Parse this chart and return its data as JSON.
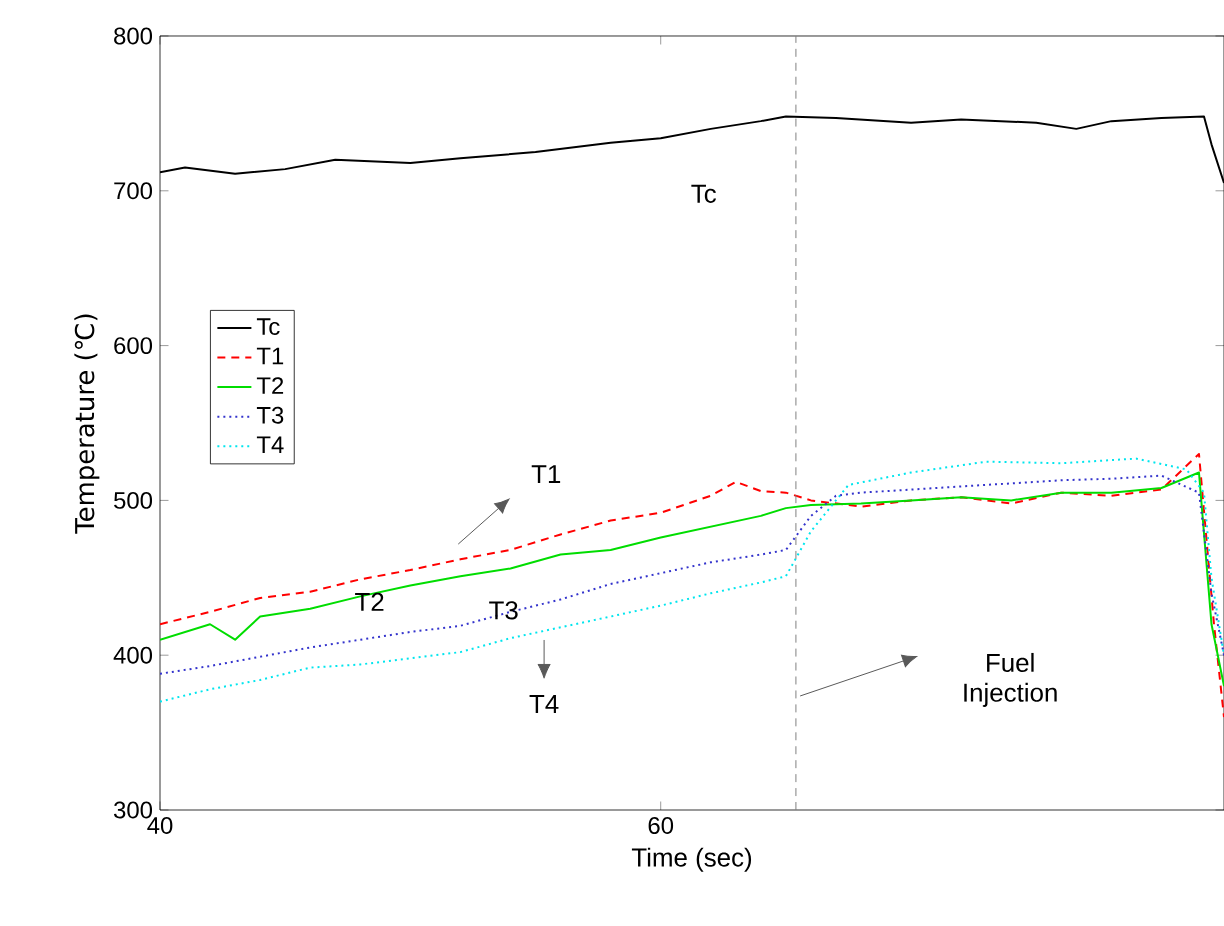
{
  "chart_data": {
    "type": "line",
    "xlabel": "Time (sec)",
    "ylabel": "Temperature (℃)",
    "xlim": [
      40,
      82.5
    ],
    "ylim": [
      300,
      800
    ],
    "xticks": [
      40,
      60
    ],
    "yticks": [
      300,
      400,
      500,
      600,
      700,
      800
    ],
    "grid": false,
    "legend": "left",
    "marker": "none",
    "series": [
      {
        "name": "Tc",
        "color": "#000000",
        "line_style": "solid",
        "x": [
          40,
          41,
          43,
          45,
          47,
          50,
          52,
          55,
          58,
          60,
          62,
          64,
          65,
          67,
          70,
          72,
          75,
          76.6,
          78,
          80,
          81.7,
          82,
          82.5
        ],
        "values": [
          712,
          715,
          711,
          714,
          720,
          718,
          721,
          725,
          731,
          734,
          740,
          745,
          748,
          747,
          744,
          746,
          744,
          740,
          745,
          747,
          748,
          730,
          705
        ]
      },
      {
        "name": "T1",
        "color": "#ff0000",
        "line_style": "dashed",
        "x": [
          40,
          42,
          44,
          46,
          48,
          50,
          52,
          54,
          56,
          58,
          60,
          62,
          63,
          64,
          65,
          66,
          68,
          70,
          72,
          74,
          76,
          78,
          80,
          81.5,
          82.1,
          82.5
        ],
        "values": [
          420,
          428,
          437,
          441,
          449,
          455,
          462,
          468,
          478,
          487,
          492,
          503,
          512,
          506,
          505,
          500,
          496,
          500,
          502,
          498,
          505,
          503,
          507,
          530,
          420,
          360
        ]
      },
      {
        "name": "T2",
        "color": "#00dd00",
        "line_style": "solid",
        "x": [
          40,
          42,
          43,
          44,
          46,
          48,
          50,
          52,
          54,
          56,
          58,
          60,
          62,
          64,
          65,
          66,
          68,
          70,
          72,
          74,
          76,
          78,
          80,
          81.5,
          82,
          82.5
        ],
        "values": [
          410,
          420,
          410,
          425,
          430,
          438,
          445,
          451,
          456,
          465,
          468,
          476,
          483,
          490,
          495,
          497,
          498,
          500,
          502,
          500,
          505,
          505,
          508,
          518,
          420,
          380
        ]
      },
      {
        "name": "T3",
        "color": "#3333cc",
        "line_style": "dotted",
        "x": [
          40,
          42,
          44,
          46,
          48,
          50,
          52,
          54,
          56,
          58,
          60,
          62,
          64,
          65,
          66,
          67,
          68,
          70,
          72,
          74,
          76,
          78,
          80,
          81.5,
          82,
          82.5
        ],
        "values": [
          388,
          393,
          399,
          405,
          410,
          415,
          419,
          428,
          436,
          446,
          453,
          460,
          465,
          468,
          490,
          503,
          505,
          507,
          509,
          511,
          513,
          514,
          516,
          505,
          440,
          400
        ]
      },
      {
        "name": "T4",
        "color": "#00e5ee",
        "line_style": "dotted",
        "x": [
          40,
          42,
          44,
          46,
          48,
          50,
          52,
          54,
          56,
          58,
          60,
          62,
          64,
          65,
          66,
          67.5,
          70,
          73,
          76,
          79,
          81,
          81.7,
          82,
          82.5
        ],
        "values": [
          370,
          378,
          384,
          392,
          394,
          398,
          402,
          411,
          418,
          425,
          432,
          440,
          447,
          451,
          480,
          510,
          518,
          525,
          524,
          527,
          520,
          505,
          450,
          400
        ]
      }
    ],
    "ref_lines": [
      {
        "axis": "x",
        "value": 65.4,
        "color": "#808080",
        "line_style": "dashed"
      }
    ],
    "annotations": [
      "Tc",
      "T1",
      "T2",
      "T3",
      "T4",
      "Fuel Injection"
    ]
  }
}
